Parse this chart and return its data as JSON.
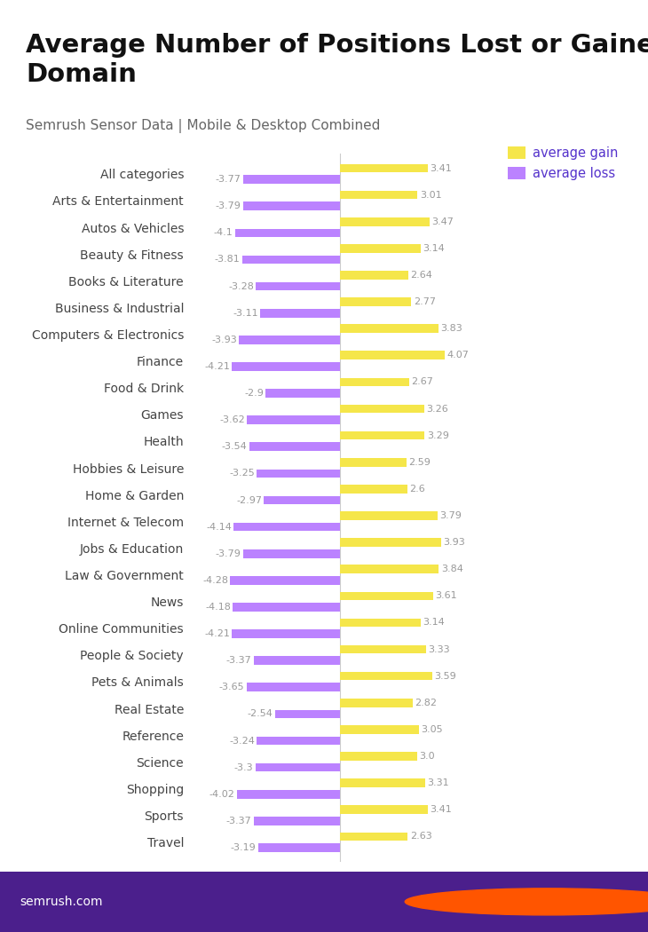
{
  "title": "Average Number of Positions Lost or Gained per\nDomain",
  "subtitle": "Semrush Sensor Data | Mobile & Desktop Combined",
  "categories": [
    "All categories",
    "Arts & Entertainment",
    "Autos & Vehicles",
    "Beauty & Fitness",
    "Books & Literature",
    "Business & Industrial",
    "Computers & Electronics",
    "Finance",
    "Food & Drink",
    "Games",
    "Health",
    "Hobbies & Leisure",
    "Home & Garden",
    "Internet & Telecom",
    "Jobs & Education",
    "Law & Government",
    "News",
    "Online Communities",
    "People & Society",
    "Pets & Animals",
    "Real Estate",
    "Reference",
    "Science",
    "Shopping",
    "Sports",
    "Travel"
  ],
  "gains": [
    3.41,
    3.01,
    3.47,
    3.14,
    2.64,
    2.77,
    3.83,
    4.07,
    2.67,
    3.26,
    3.29,
    2.59,
    2.6,
    3.79,
    3.93,
    3.84,
    3.61,
    3.14,
    3.33,
    3.59,
    2.82,
    3.05,
    3.0,
    3.31,
    3.41,
    2.63
  ],
  "losses": [
    -3.77,
    -3.79,
    -4.1,
    -3.81,
    -3.28,
    -3.11,
    -3.93,
    -4.21,
    -2.9,
    -3.62,
    -3.54,
    -3.25,
    -2.97,
    -4.14,
    -3.79,
    -4.28,
    -4.18,
    -4.21,
    -3.37,
    -3.65,
    -2.54,
    -3.24,
    -3.3,
    -4.02,
    -3.37,
    -3.19
  ],
  "gain_color": "#f5e64a",
  "loss_color": "#bb82ff",
  "background_color": "#ffffff",
  "footer_bg_color": "#4b1f8c",
  "title_fontsize": 21,
  "subtitle_fontsize": 11,
  "label_fontsize": 10,
  "value_fontsize": 8,
  "legend_gain_label": "average gain",
  "legend_loss_label": "average loss",
  "legend_color": "#5533cc",
  "xlim": [
    -5.8,
    5.8
  ],
  "bar_height": 0.32,
  "bar_gap": 0.1
}
